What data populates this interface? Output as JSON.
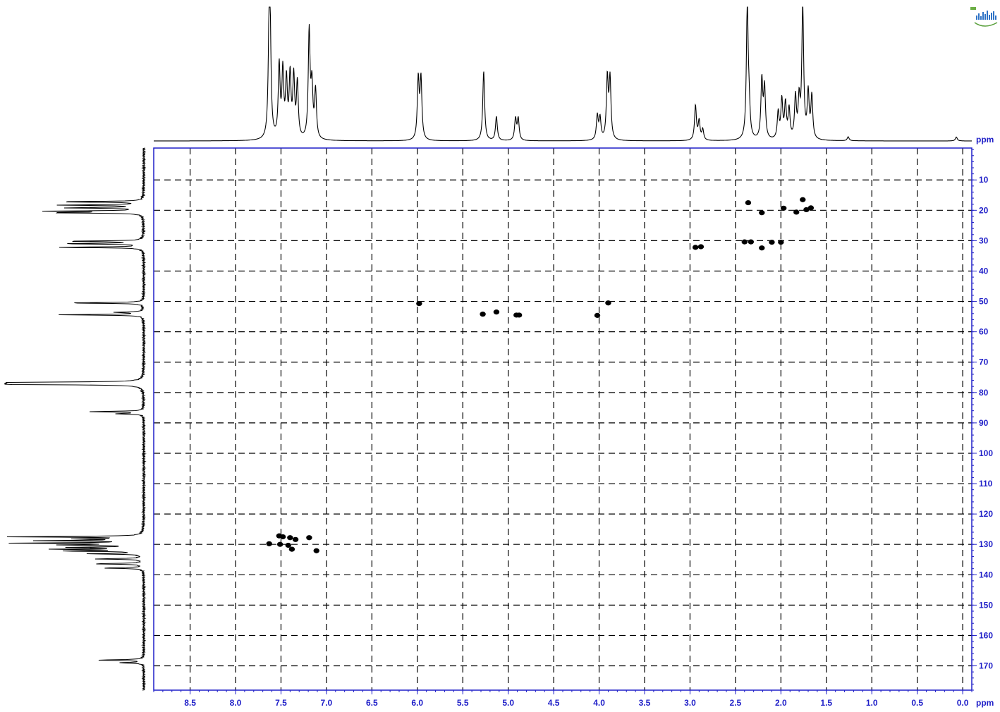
{
  "chart_data": {
    "type": "scatter",
    "title": "",
    "xlabel": "ppm",
    "ylabel": "ppm",
    "x_unit": "ppm",
    "y_unit": "ppm",
    "xlim": [
      8.9,
      -0.1
    ],
    "ylim": [
      -0.5,
      178
    ],
    "x_ticks": [
      8.5,
      8.0,
      7.5,
      7.0,
      6.5,
      6.0,
      5.5,
      5.0,
      4.5,
      4.0,
      3.5,
      3.0,
      2.5,
      2.0,
      1.5,
      1.0,
      0.5,
      0.0
    ],
    "x_tick_labels": [
      "8.5",
      "8.0",
      "7.5",
      "7.0",
      "6.5",
      "6.0",
      "5.5",
      "5.0",
      "4.5",
      "4.0",
      "3.5",
      "3.0",
      "2.5",
      "2.0",
      "1.5",
      "1.0",
      "0.5",
      "0.0"
    ],
    "y_ticks": [
      10,
      20,
      30,
      40,
      50,
      60,
      70,
      80,
      90,
      100,
      110,
      120,
      130,
      140,
      150,
      160,
      170
    ],
    "y_tick_labels": [
      "10",
      "20",
      "30",
      "40",
      "50",
      "60",
      "70",
      "80",
      "90",
      "100",
      "110",
      "120",
      "130",
      "140",
      "150",
      "160",
      "170"
    ],
    "grid": true,
    "series": [
      {
        "values": [
          {
            "x": 7.63,
            "y": 129.8
          },
          {
            "x": 7.52,
            "y": 127.2
          },
          {
            "x": 7.48,
            "y": 127.5
          },
          {
            "x": 7.51,
            "y": 130.0
          },
          {
            "x": 7.42,
            "y": 130.3
          },
          {
            "x": 7.4,
            "y": 127.8
          },
          {
            "x": 7.38,
            "y": 131.6
          },
          {
            "x": 7.34,
            "y": 128.4
          },
          {
            "x": 7.19,
            "y": 127.8
          },
          {
            "x": 7.11,
            "y": 132.1
          },
          {
            "x": 5.98,
            "y": 50.7
          },
          {
            "x": 5.28,
            "y": 54.2
          },
          {
            "x": 5.13,
            "y": 53.5
          },
          {
            "x": 4.91,
            "y": 54.5
          },
          {
            "x": 4.88,
            "y": 54.5
          },
          {
            "x": 4.02,
            "y": 54.6
          },
          {
            "x": 3.9,
            "y": 50.5
          },
          {
            "x": 2.94,
            "y": 32.2
          },
          {
            "x": 2.88,
            "y": 32.0
          },
          {
            "x": 2.36,
            "y": 17.5
          },
          {
            "x": 2.4,
            "y": 30.4
          },
          {
            "x": 2.33,
            "y": 30.4
          },
          {
            "x": 2.21,
            "y": 20.8
          },
          {
            "x": 2.21,
            "y": 32.4
          },
          {
            "x": 2.1,
            "y": 30.5
          },
          {
            "x": 2.0,
            "y": 30.5
          },
          {
            "x": 1.97,
            "y": 19.3
          },
          {
            "x": 1.83,
            "y": 20.6
          },
          {
            "x": 1.76,
            "y": 16.5
          },
          {
            "x": 1.72,
            "y": 19.8
          },
          {
            "x": 1.67,
            "y": 19.2
          }
        ]
      }
    ],
    "top_projection": {
      "baseline": 0.0,
      "peaks": [
        {
          "x": 7.63,
          "h": 0.72
        },
        {
          "x": 7.62,
          "h": 0.68
        },
        {
          "x": 7.52,
          "h": 0.54
        },
        {
          "x": 7.48,
          "h": 0.49
        },
        {
          "x": 7.44,
          "h": 0.42
        },
        {
          "x": 7.4,
          "h": 0.46
        },
        {
          "x": 7.36,
          "h": 0.45
        },
        {
          "x": 7.32,
          "h": 0.41
        },
        {
          "x": 7.19,
          "h": 0.8
        },
        {
          "x": 7.16,
          "h": 0.38
        },
        {
          "x": 7.12,
          "h": 0.36
        },
        {
          "x": 5.99,
          "h": 0.45
        },
        {
          "x": 5.96,
          "h": 0.45
        },
        {
          "x": 5.27,
          "h": 0.52
        },
        {
          "x": 5.13,
          "h": 0.18
        },
        {
          "x": 4.92,
          "h": 0.16
        },
        {
          "x": 4.89,
          "h": 0.16
        },
        {
          "x": 4.02,
          "h": 0.18
        },
        {
          "x": 3.99,
          "h": 0.16
        },
        {
          "x": 3.91,
          "h": 0.46
        },
        {
          "x": 3.88,
          "h": 0.45
        },
        {
          "x": 2.94,
          "h": 0.26
        },
        {
          "x": 2.9,
          "h": 0.14
        },
        {
          "x": 2.86,
          "h": 0.08
        },
        {
          "x": 2.37,
          "h": 1.0
        },
        {
          "x": 2.35,
          "h": 0.2
        },
        {
          "x": 2.21,
          "h": 0.44
        },
        {
          "x": 2.18,
          "h": 0.38
        },
        {
          "x": 2.03,
          "h": 0.2
        },
        {
          "x": 1.99,
          "h": 0.29
        },
        {
          "x": 1.95,
          "h": 0.26
        },
        {
          "x": 1.91,
          "h": 0.22
        },
        {
          "x": 1.84,
          "h": 0.31
        },
        {
          "x": 1.8,
          "h": 0.28
        },
        {
          "x": 1.76,
          "h": 1.0
        },
        {
          "x": 1.7,
          "h": 0.34
        },
        {
          "x": 1.66,
          "h": 0.32
        },
        {
          "x": 1.26,
          "h": 0.03
        },
        {
          "x": 0.07,
          "h": 0.03
        }
      ]
    },
    "left_projection": {
      "peaks": [
        {
          "y": 17.2,
          "h": 0.62
        },
        {
          "y": 18.3,
          "h": 0.6
        },
        {
          "y": 19.2,
          "h": 0.55
        },
        {
          "y": 20.3,
          "h": 0.68
        },
        {
          "y": 20.8,
          "h": 0.64
        },
        {
          "y": 30.2,
          "h": 0.56
        },
        {
          "y": 31.0,
          "h": 0.58
        },
        {
          "y": 32.2,
          "h": 0.62
        },
        {
          "y": 50.5,
          "h": 0.56
        },
        {
          "y": 53.6,
          "h": 0.2
        },
        {
          "y": 54.4,
          "h": 0.6
        },
        {
          "y": 77.0,
          "h": 1.0
        },
        {
          "y": 77.3,
          "h": 0.98
        },
        {
          "y": 76.7,
          "h": 0.98
        },
        {
          "y": 86.3,
          "h": 0.38
        },
        {
          "y": 87.0,
          "h": 0.2
        },
        {
          "y": 127.5,
          "h": 0.98
        },
        {
          "y": 128.2,
          "h": 0.42
        },
        {
          "y": 128.8,
          "h": 0.72
        },
        {
          "y": 129.6,
          "h": 0.9
        },
        {
          "y": 130.2,
          "h": 0.55
        },
        {
          "y": 131.0,
          "h": 0.48
        },
        {
          "y": 131.6,
          "h": 0.62
        },
        {
          "y": 132.2,
          "h": 0.56
        },
        {
          "y": 133.1,
          "h": 0.38
        },
        {
          "y": 134.8,
          "h": 0.34
        },
        {
          "y": 136.4,
          "h": 0.36
        },
        {
          "y": 137.8,
          "h": 0.3
        },
        {
          "y": 168.1,
          "h": 0.34
        },
        {
          "y": 169.0,
          "h": 0.18
        }
      ]
    }
  }
}
